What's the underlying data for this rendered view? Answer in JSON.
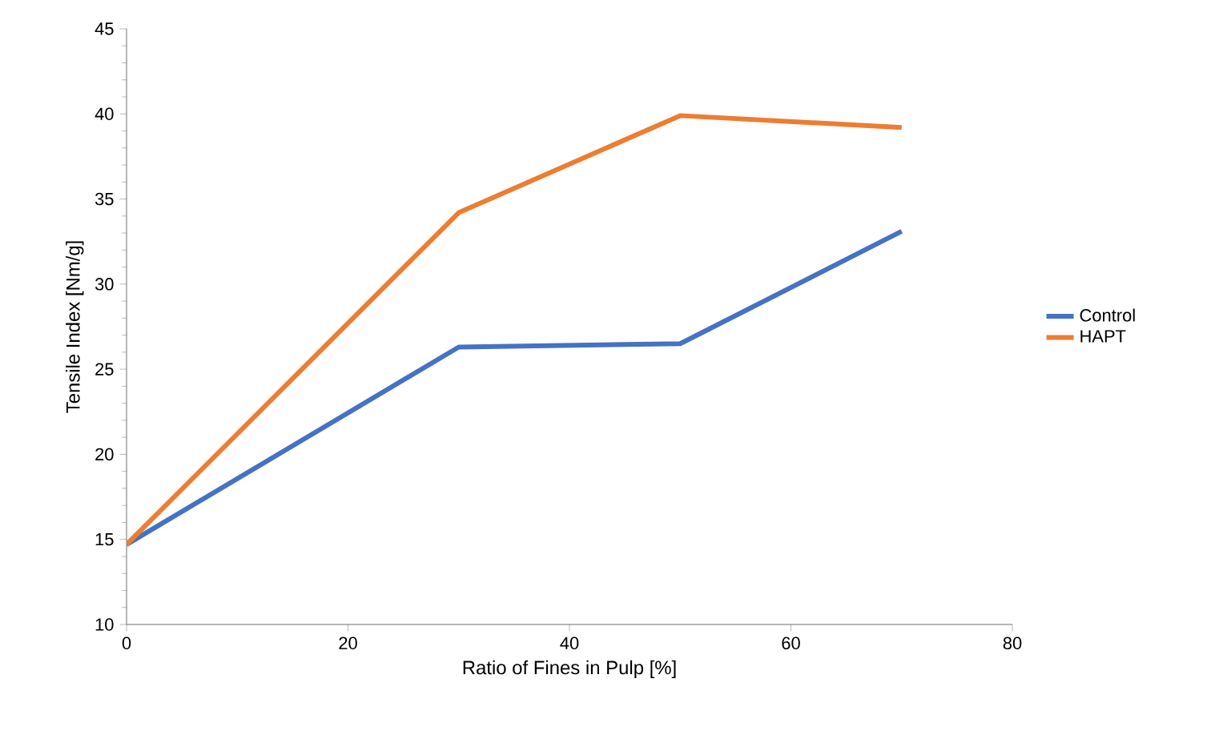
{
  "chart_data": {
    "type": "line",
    "xlabel": "Ratio of Fines in Pulp [%]",
    "ylabel": "Tensile Index [Nm/g]",
    "x": [
      0,
      30,
      50,
      70
    ],
    "series": [
      {
        "name": "Control",
        "color": "#4472c4",
        "values": [
          14.7,
          26.3,
          26.5,
          33.1
        ]
      },
      {
        "name": "HAPT",
        "color": "#ed7d31",
        "values": [
          14.7,
          34.2,
          39.9,
          39.2
        ]
      }
    ],
    "xlim": [
      0,
      80
    ],
    "xticks": [
      0,
      20,
      40,
      60,
      80
    ],
    "ylim": [
      10,
      45
    ],
    "yticks": [
      10,
      15,
      20,
      25,
      30,
      35,
      40,
      45
    ],
    "grid": false,
    "legend": "right",
    "marker": "none",
    "line_style": "solid"
  }
}
